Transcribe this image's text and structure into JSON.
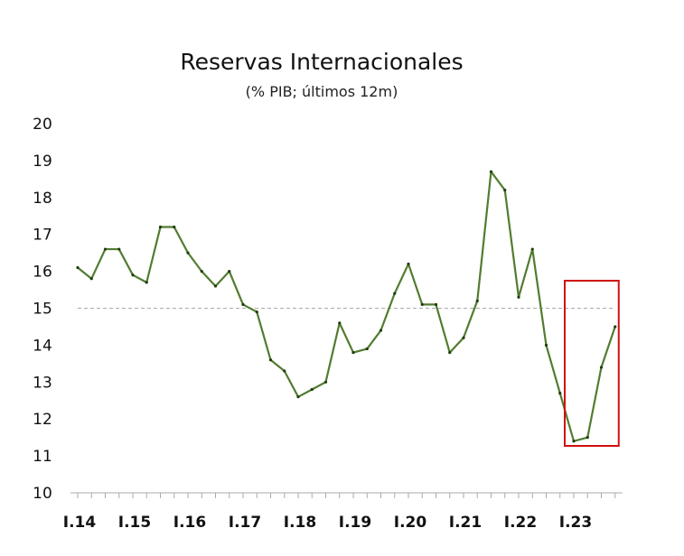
{
  "chart_data": {
    "type": "line",
    "title": "Reservas Internacionales",
    "subtitle": "(% PIB; últimos 12m)",
    "xlabel": "",
    "ylabel": "",
    "ylim": [
      10,
      20
    ],
    "yticks": [
      "10",
      "11",
      "12",
      "13",
      "14",
      "15",
      "16",
      "17",
      "18",
      "19",
      "20"
    ],
    "categories": [
      "I.14",
      "I.15",
      "I.16",
      "I.17",
      "I.18",
      "I.19",
      "I.20",
      "I.21",
      "I.22",
      "I.23"
    ],
    "x": [
      "I.14",
      "II.14",
      "III.14",
      "IV.14",
      "I.15",
      "II.15",
      "III.15",
      "IV.15",
      "I.16",
      "II.16",
      "III.16",
      "IV.16",
      "I.17",
      "II.17",
      "III.17",
      "IV.17",
      "I.18",
      "II.18",
      "III.18",
      "IV.18",
      "I.19",
      "II.19",
      "III.19",
      "IV.19",
      "I.20",
      "II.20",
      "III.20",
      "IV.20",
      "I.21",
      "II.21",
      "III.21",
      "IV.21",
      "I.22",
      "II.22",
      "III.22",
      "IV.22",
      "I.23",
      "II.23",
      "III.23",
      "IV.23"
    ],
    "series": [
      {
        "values": [
          16.1,
          15.8,
          16.6,
          16.6,
          15.9,
          15.7,
          17.2,
          17.2,
          16.5,
          16.0,
          15.6,
          16.0,
          15.1,
          14.9,
          13.6,
          13.3,
          12.6,
          12.8,
          13.0,
          14.6,
          13.8,
          13.9,
          14.4,
          15.4,
          16.2,
          15.1,
          15.1,
          13.8,
          14.2,
          15.2,
          18.7,
          18.2,
          15.3,
          16.6,
          14.0,
          12.7,
          11.4,
          11.5,
          13.4,
          14.5
        ]
      }
    ],
    "reference_line": 15,
    "highlight_range": [
      "I.23",
      "IV.23"
    ],
    "colors": {
      "line": "#527c30",
      "reference": "#aaaaaa",
      "highlight": "#d01010",
      "axis": "#aaaaaa"
    },
    "grid": false,
    "legend": "none"
  }
}
